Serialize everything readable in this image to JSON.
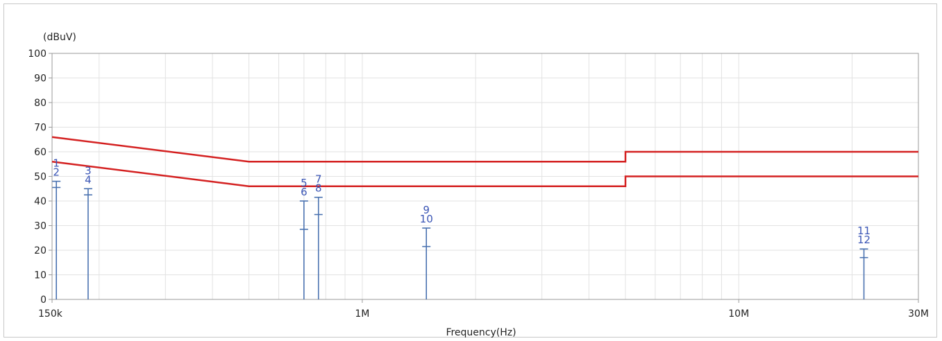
{
  "chart_data": {
    "type": "line",
    "title": "",
    "xlabel": "Frequency(Hz)",
    "ylabel": "(dBuV)",
    "x_scale": "log",
    "xlim": [
      150000,
      30000000
    ],
    "ylim": [
      0,
      100
    ],
    "grid": true,
    "y_ticks": [
      {
        "value": 0,
        "label": "0"
      },
      {
        "value": 10,
        "label": "10"
      },
      {
        "value": 20,
        "label": "20"
      },
      {
        "value": 30,
        "label": "30"
      },
      {
        "value": 40,
        "label": "40"
      },
      {
        "value": 50,
        "label": "50"
      },
      {
        "value": 60,
        "label": "60"
      },
      {
        "value": 70,
        "label": "70"
      },
      {
        "value": 80,
        "label": "80"
      },
      {
        "value": 90,
        "label": "90"
      },
      {
        "value": 100,
        "label": "100"
      }
    ],
    "x_ticks": [
      {
        "value": 150000,
        "label": "150k"
      },
      {
        "value": 1000000,
        "label": "1M"
      },
      {
        "value": 10000000,
        "label": "10M"
      },
      {
        "value": 30000000,
        "label": "30M"
      }
    ],
    "series": [
      {
        "color": "#d42020",
        "points": [
          [
            150000,
            66
          ],
          [
            500000,
            56
          ],
          [
            5000000,
            56
          ],
          [
            5000000,
            60
          ],
          [
            30000000,
            60
          ]
        ]
      },
      {
        "color": "#d42020",
        "points": [
          [
            150000,
            56
          ],
          [
            500000,
            46
          ],
          [
            5000000,
            46
          ],
          [
            5000000,
            50
          ],
          [
            30000000,
            50
          ]
        ]
      }
    ],
    "markers": [
      {
        "label": "1",
        "x": 154000,
        "y": 48
      },
      {
        "label": "2",
        "x": 154000,
        "y": 45.5
      },
      {
        "label": "3",
        "x": 187000,
        "y": 45
      },
      {
        "label": "4",
        "x": 187000,
        "y": 42.5
      },
      {
        "label": "5",
        "x": 700000,
        "y": 40
      },
      {
        "label": "6",
        "x": 700000,
        "y": 28.5
      },
      {
        "label": "7",
        "x": 765000,
        "y": 41.5
      },
      {
        "label": "8",
        "x": 765000,
        "y": 34.5
      },
      {
        "label": "9",
        "x": 1480000,
        "y": 29
      },
      {
        "label": "10",
        "x": 1480000,
        "y": 21.5
      },
      {
        "label": "11",
        "x": 21500000,
        "y": 20.5
      },
      {
        "label": "12",
        "x": 21500000,
        "y": 17
      }
    ],
    "colors": {
      "limit": "#d42020",
      "marker": "#4a72b0",
      "marker_label": "#3a55b5",
      "grid": "#e2e2e2",
      "axis": "#999999"
    }
  }
}
